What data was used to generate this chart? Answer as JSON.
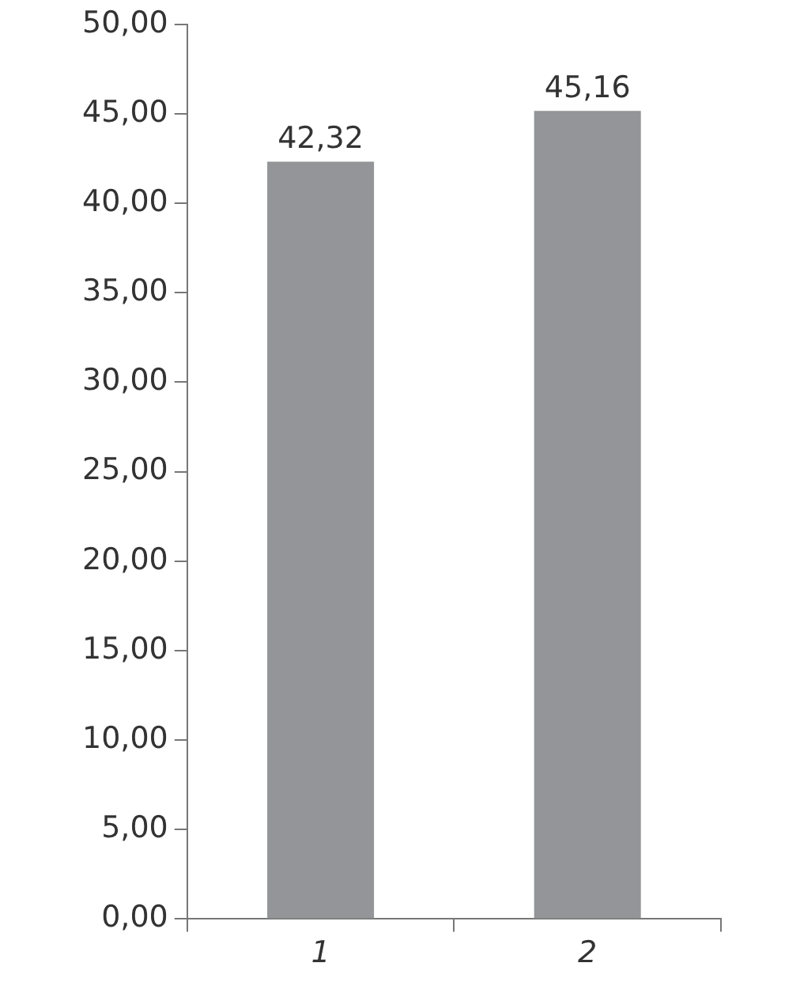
{
  "chart_data": {
    "type": "bar",
    "categories": [
      "1",
      "2"
    ],
    "values": [
      42.32,
      45.16
    ],
    "color": "#939598",
    "value_labels": [
      "42,32",
      "45,16"
    ],
    "ylim": [
      0,
      50
    ],
    "yticks": [
      {
        "value": 0,
        "label": "0,00"
      },
      {
        "value": 5,
        "label": "5,00"
      },
      {
        "value": 10,
        "label": "10,00"
      },
      {
        "value": 15,
        "label": "15,00"
      },
      {
        "value": 20,
        "label": "20,00"
      },
      {
        "value": 25,
        "label": "25,00"
      },
      {
        "value": 30,
        "label": "30,00"
      },
      {
        "value": 35,
        "label": "35,00"
      },
      {
        "value": 40,
        "label": "40,00"
      },
      {
        "value": 45,
        "label": "45,00"
      },
      {
        "value": 50,
        "label": "50,00"
      }
    ],
    "grid": false,
    "legend": false
  }
}
